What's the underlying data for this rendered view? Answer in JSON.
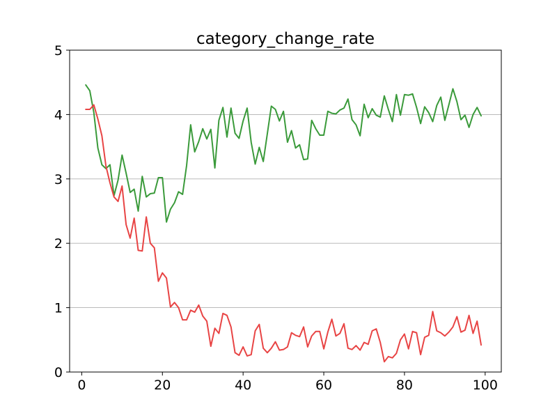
{
  "chart_data": {
    "type": "line",
    "title": "category_change_rate",
    "xlabel": "",
    "ylabel": "",
    "xlim": [
      -3,
      104
    ],
    "ylim": [
      0,
      5
    ],
    "xticks": [
      0,
      20,
      40,
      60,
      80,
      100
    ],
    "yticks": [
      0,
      1,
      2,
      3,
      4,
      5
    ],
    "grid": "y-axis only",
    "legend": "none",
    "x": [
      1,
      2,
      3,
      4,
      5,
      6,
      7,
      8,
      9,
      10,
      11,
      12,
      13,
      14,
      15,
      16,
      17,
      18,
      19,
      20,
      21,
      22,
      23,
      24,
      25,
      26,
      27,
      28,
      29,
      30,
      31,
      32,
      33,
      34,
      35,
      36,
      37,
      38,
      39,
      40,
      41,
      42,
      43,
      44,
      45,
      46,
      47,
      48,
      49,
      50,
      51,
      52,
      53,
      54,
      55,
      56,
      57,
      58,
      59,
      60,
      61,
      62,
      63,
      64,
      65,
      66,
      67,
      68,
      69,
      70,
      71,
      72,
      73,
      74,
      75,
      76,
      77,
      78,
      79,
      80,
      81,
      82,
      83,
      84,
      85,
      86,
      87,
      88,
      89,
      90,
      91,
      92,
      93,
      94,
      95,
      96,
      97,
      98,
      99
    ],
    "series": [
      {
        "color": "#3a9a3a",
        "values": [
          4.46,
          4.37,
          4.03,
          3.48,
          3.22,
          3.16,
          3.22,
          2.74,
          2.98,
          3.37,
          3.09,
          2.79,
          2.84,
          2.5,
          3.04,
          2.72,
          2.77,
          2.78,
          3.02,
          3.02,
          2.33,
          2.53,
          2.63,
          2.8,
          2.76,
          3.21,
          3.84,
          3.42,
          3.58,
          3.78,
          3.62,
          3.77,
          3.17,
          3.91,
          4.11,
          3.65,
          4.1,
          3.71,
          3.63,
          3.9,
          4.1,
          3.57,
          3.23,
          3.49,
          3.27,
          3.7,
          4.13,
          4.08,
          3.9,
          4.05,
          3.57,
          3.75,
          3.48,
          3.53,
          3.3,
          3.31,
          3.91,
          3.78,
          3.68,
          3.68,
          4.05,
          4.02,
          4.01,
          4.07,
          4.1,
          4.24,
          3.92,
          3.84,
          3.67,
          4.16,
          3.95,
          4.09,
          3.99,
          3.96,
          4.29,
          4.08,
          3.89,
          4.31,
          3.99,
          4.31,
          4.3,
          4.32,
          4.11,
          3.86,
          4.12,
          4.03,
          3.89,
          4.14,
          4.27,
          3.91,
          4.15,
          4.4,
          4.2,
          3.92,
          3.99,
          3.8,
          4.0,
          4.11,
          3.98
        ]
      },
      {
        "color": "#e84444",
        "values": [
          4.08,
          4.08,
          4.15,
          3.93,
          3.67,
          3.2,
          2.94,
          2.72,
          2.65,
          2.89,
          2.29,
          2.08,
          2.39,
          1.89,
          1.88,
          2.41,
          2.0,
          1.93,
          1.41,
          1.54,
          1.46,
          1.01,
          1.08,
          1.0,
          0.81,
          0.81,
          0.96,
          0.93,
          1.04,
          0.87,
          0.79,
          0.4,
          0.68,
          0.6,
          0.91,
          0.88,
          0.7,
          0.3,
          0.26,
          0.39,
          0.25,
          0.27,
          0.64,
          0.74,
          0.37,
          0.3,
          0.37,
          0.47,
          0.34,
          0.35,
          0.39,
          0.61,
          0.57,
          0.55,
          0.7,
          0.39,
          0.56,
          0.63,
          0.63,
          0.36,
          0.62,
          0.82,
          0.56,
          0.6,
          0.75,
          0.37,
          0.35,
          0.41,
          0.34,
          0.46,
          0.43,
          0.64,
          0.67,
          0.46,
          0.16,
          0.24,
          0.22,
          0.29,
          0.5,
          0.59,
          0.36,
          0.63,
          0.61,
          0.27,
          0.54,
          0.57,
          0.94,
          0.64,
          0.61,
          0.56,
          0.62,
          0.7,
          0.86,
          0.62,
          0.65,
          0.88,
          0.6,
          0.79,
          0.42
        ]
      }
    ]
  }
}
